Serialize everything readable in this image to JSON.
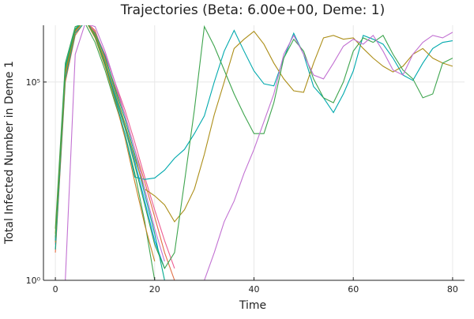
{
  "chart_data": {
    "type": "line",
    "title": "Trajectories (Beta: 6.00e+00, Deme: 1)",
    "xlabel": "Time",
    "ylabel": "Total Infected Number in Deme 1",
    "log_y": true,
    "grid": true,
    "xlim": [
      -2.4,
      82.4
    ],
    "xticks": [
      0,
      20,
      40,
      60,
      80
    ],
    "ylim": [
      1,
      2700000
    ],
    "yticks": [
      {
        "value": 1,
        "label": "10⁰"
      },
      {
        "value": 100000,
        "label": "10⁵"
      }
    ],
    "x": [
      0,
      2,
      4,
      6,
      8,
      10,
      12,
      14,
      16,
      18,
      20,
      22,
      24,
      26,
      28,
      30,
      32,
      34,
      36,
      38,
      40,
      42,
      44,
      46,
      48,
      50,
      52,
      54,
      56,
      58,
      60,
      62,
      64,
      66,
      68,
      70,
      72,
      74,
      76,
      78,
      80
    ],
    "series": [
      {
        "color": "#009af9",
        "values": [
          10,
          200000,
          2000000,
          4000000,
          1500000,
          300000,
          50000,
          8000,
          1000,
          100,
          10,
          2,
          null,
          null,
          null,
          null,
          null,
          null,
          null,
          null,
          null,
          null,
          null,
          null,
          null,
          null,
          null,
          null,
          null,
          null,
          null,
          null,
          null,
          null,
          null,
          null,
          null,
          null,
          null,
          null,
          null
        ]
      },
      {
        "color": "#e26f46",
        "values": [
          5,
          100000,
          1500000,
          3500000,
          2000000,
          400000,
          80000,
          15000,
          2000,
          300,
          40,
          5,
          1,
          null,
          null,
          null,
          null,
          null,
          null,
          null,
          null,
          null,
          null,
          null,
          null,
          null,
          null,
          null,
          null,
          null,
          null,
          null,
          null,
          null,
          null,
          null,
          null,
          null,
          null,
          null,
          null
        ]
      },
      {
        "color": "#3da44d",
        "values": [
          20,
          300000,
          2500000,
          3000000,
          1000000,
          200000,
          30000,
          5000,
          500,
          30,
          1,
          null,
          null,
          null,
          null,
          null,
          null,
          null,
          null,
          null,
          null,
          null,
          null,
          null,
          null,
          null,
          null,
          null,
          null,
          null,
          null,
          null,
          null,
          null,
          null,
          null,
          null,
          null,
          null,
          null,
          null
        ]
      },
      {
        "color": "#ed5e93",
        "values": [
          8,
          150000,
          1800000,
          3800000,
          1800000,
          500000,
          100000,
          20000,
          3000,
          400,
          60,
          10,
          2,
          null,
          null,
          null,
          null,
          null,
          null,
          null,
          null,
          null,
          null,
          null,
          null,
          null,
          null,
          null,
          null,
          null,
          null,
          null,
          null,
          null,
          null,
          null,
          null,
          null,
          null,
          null,
          null
        ]
      },
      {
        "color": "#00a98d",
        "values": [
          6,
          120000,
          1700000,
          3300000,
          1700000,
          450000,
          70000,
          12000,
          1500,
          150,
          15,
          1,
          null,
          null,
          null,
          null,
          null,
          null,
          null,
          null,
          null,
          null,
          null,
          null,
          null,
          null,
          null,
          null,
          null,
          null,
          null,
          null,
          null,
          null,
          null,
          null,
          null,
          null,
          null,
          null,
          null
        ]
      },
      {
        "color": "#c68225",
        "values": [
          9,
          160000,
          1900000,
          3700000,
          1300000,
          250000,
          35000,
          4000,
          300,
          25,
          3,
          null,
          null,
          null,
          null,
          null,
          null,
          null,
          null,
          null,
          null,
          null,
          null,
          null,
          null,
          null,
          null,
          null,
          null,
          null,
          null,
          null,
          null,
          null,
          null,
          null,
          null,
          null,
          null,
          null,
          null
        ]
      },
      {
        "color": "#00a9ad",
        "values": [
          10,
          250000,
          2200000,
          4000000,
          1500000,
          300000,
          40000,
          5000,
          400,
          350,
          380,
          600,
          1200,
          2000,
          5000,
          14000,
          100000,
          600000,
          2000000,
          600000,
          190000,
          90000,
          80000,
          400000,
          1700000,
          500000,
          77000,
          40000,
          17000,
          50000,
          190000,
          1500000,
          1200000,
          900000,
          400000,
          150000,
          110000,
          300000,
          700000,
          1000000,
          1100000
        ]
      },
      {
        "color": "#ac8e18",
        "values": [
          15,
          180000,
          2000000,
          3600000,
          1600000,
          350000,
          60000,
          9000,
          1200,
          200,
          135,
          80,
          30,
          60,
          200,
          1500,
          15000,
          100000,
          700000,
          1200000,
          1900000,
          900000,
          300000,
          120000,
          60000,
          55000,
          300000,
          1300000,
          1500000,
          1200000,
          1300000,
          700000,
          400000,
          250000,
          180000,
          250000,
          500000,
          700000,
          400000,
          300000,
          250000
        ]
      },
      {
        "color": "#3da44d",
        "values": [
          12,
          220000,
          2100000,
          3900000,
          1400000,
          280000,
          45000,
          7000,
          800,
          80,
          8,
          2,
          5,
          300,
          20000,
          2500000,
          800000,
          200000,
          50000,
          15000,
          5000,
          5000,
          30000,
          400000,
          1200000,
          600000,
          120000,
          40000,
          30000,
          100000,
          600000,
          1300000,
          1000000,
          1500000,
          500000,
          200000,
          120000,
          40000,
          50000,
          300000,
          400000
        ]
      },
      {
        "color": "#c271d2",
        "values": [
          null,
          1,
          500000,
          3000000,
          2500000,
          600000,
          100000,
          15000,
          2000,
          200,
          20,
          3,
          null,
          null,
          null,
          1,
          5,
          30,
          100,
          500,
          2000,
          10000,
          50000,
          500000,
          1500000,
          500000,
          150000,
          120000,
          300000,
          800000,
          1200000,
          900000,
          1500000,
          600000,
          200000,
          150000,
          500000,
          1000000,
          1500000,
          1300000,
          1800000
        ]
      }
    ]
  }
}
